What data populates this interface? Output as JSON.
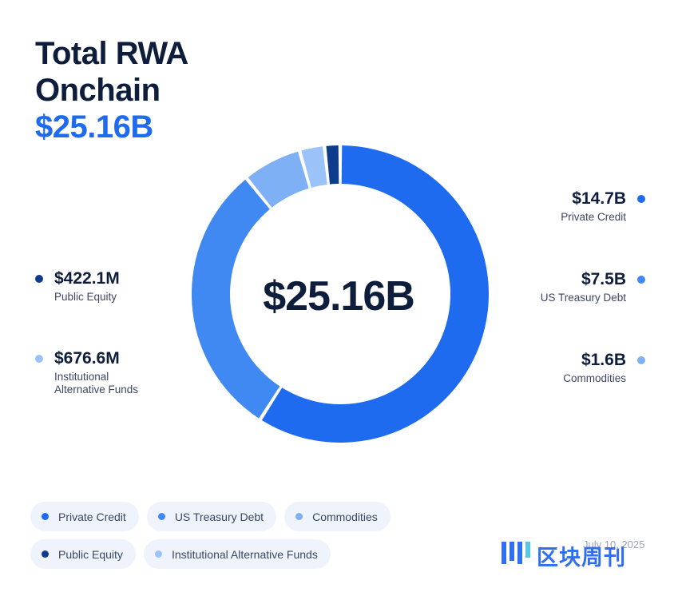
{
  "title": {
    "line1": "Total RWA",
    "line2": "Onchain",
    "total": "$25.16B"
  },
  "center_label": "$25.16B",
  "colors": {
    "private_credit": "#1f6bf0",
    "us_treasury": "#4189f2",
    "commodities": "#7eb0f6",
    "public_equity": "#0d3c8c",
    "alt_funds": "#9cc3f9",
    "text_dark": "#0f1d3d"
  },
  "legend": {
    "private_credit": {
      "value": "$14.7B",
      "label": "Private Credit"
    },
    "us_treasury": {
      "value": "$7.5B",
      "label": "US Treasury Debt"
    },
    "commodities": {
      "value": "$1.6B",
      "label": "Commodities"
    },
    "public_equity": {
      "value": "$422.1M",
      "label": "Public Equity"
    },
    "alt_funds": {
      "value": "$676.6M",
      "label_line1": "Institutional",
      "label_line2": "Alternative Funds"
    }
  },
  "chips": {
    "private_credit": "Private Credit",
    "us_treasury": "US Treasury Debt",
    "commodities": "Commodities",
    "public_equity": "Public Equity",
    "alt_funds": "Institutional Alternative Funds"
  },
  "watermark": {
    "date": "July 10, 2025",
    "logo_text": "区块周刊"
  },
  "chart_data": {
    "type": "pie",
    "title": "Total RWA Onchain",
    "total": "$25.16B",
    "categories": [
      "Private Credit",
      "US Treasury Debt",
      "Commodities",
      "Institutional Alternative Funds",
      "Public Equity"
    ],
    "values": [
      14.7,
      7.5,
      1.6,
      0.6766,
      0.4221
    ],
    "unit": "$B",
    "colors": [
      "#1f6bf0",
      "#4189f2",
      "#7eb0f6",
      "#9cc3f9",
      "#0d3c8c"
    ],
    "legend": "left-right"
  }
}
